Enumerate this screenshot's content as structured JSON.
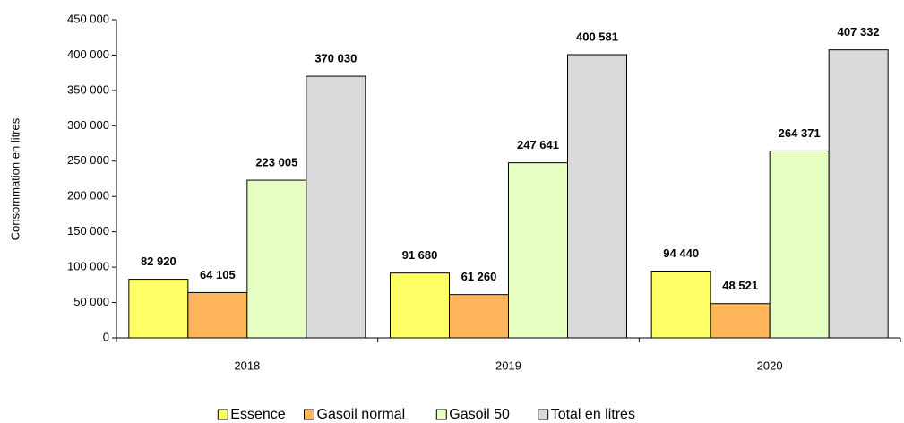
{
  "chart_data": {
    "type": "bar",
    "y_label": "Consommation en litres",
    "categories": [
      "2018",
      "2019",
      "2020"
    ],
    "series": [
      {
        "name": "Essence",
        "color": "#ffff66",
        "values": [
          82920,
          91680,
          94440
        ],
        "value_labels": [
          "82 920",
          "91 680",
          "94 440"
        ]
      },
      {
        "name": "Gasoil normal",
        "color": "#ffb55a",
        "values": [
          64105,
          61260,
          48521
        ],
        "value_labels": [
          "64 105",
          "61 260",
          "48 521"
        ]
      },
      {
        "name": "Gasoil 50",
        "color": "#e6ffc3",
        "values": [
          223005,
          247641,
          264371
        ],
        "value_labels": [
          "223 005",
          "247 641",
          "264 371"
        ]
      },
      {
        "name": "Total en litres",
        "color": "#d9d9d9",
        "values": [
          370030,
          400581,
          407332
        ],
        "value_labels": [
          "370 030",
          "400 581",
          "407 332"
        ]
      }
    ],
    "ylim": [
      0,
      450000
    ],
    "yticks": [
      0,
      {
        "value": 50000,
        "label": "50 000"
      },
      {
        "value": 100000,
        "label": "100 000"
      },
      {
        "value": 150000,
        "label": "150 000"
      },
      {
        "value": 200000,
        "label": "200 000"
      },
      {
        "value": 250000,
        "label": "250 000"
      },
      {
        "value": 300000,
        "label": "300 000"
      },
      {
        "value": 350000,
        "label": "350 000"
      },
      {
        "value": 400000,
        "label": "400 000"
      },
      {
        "value": 450000,
        "label": "450 000"
      }
    ],
    "legend": "bottom"
  }
}
